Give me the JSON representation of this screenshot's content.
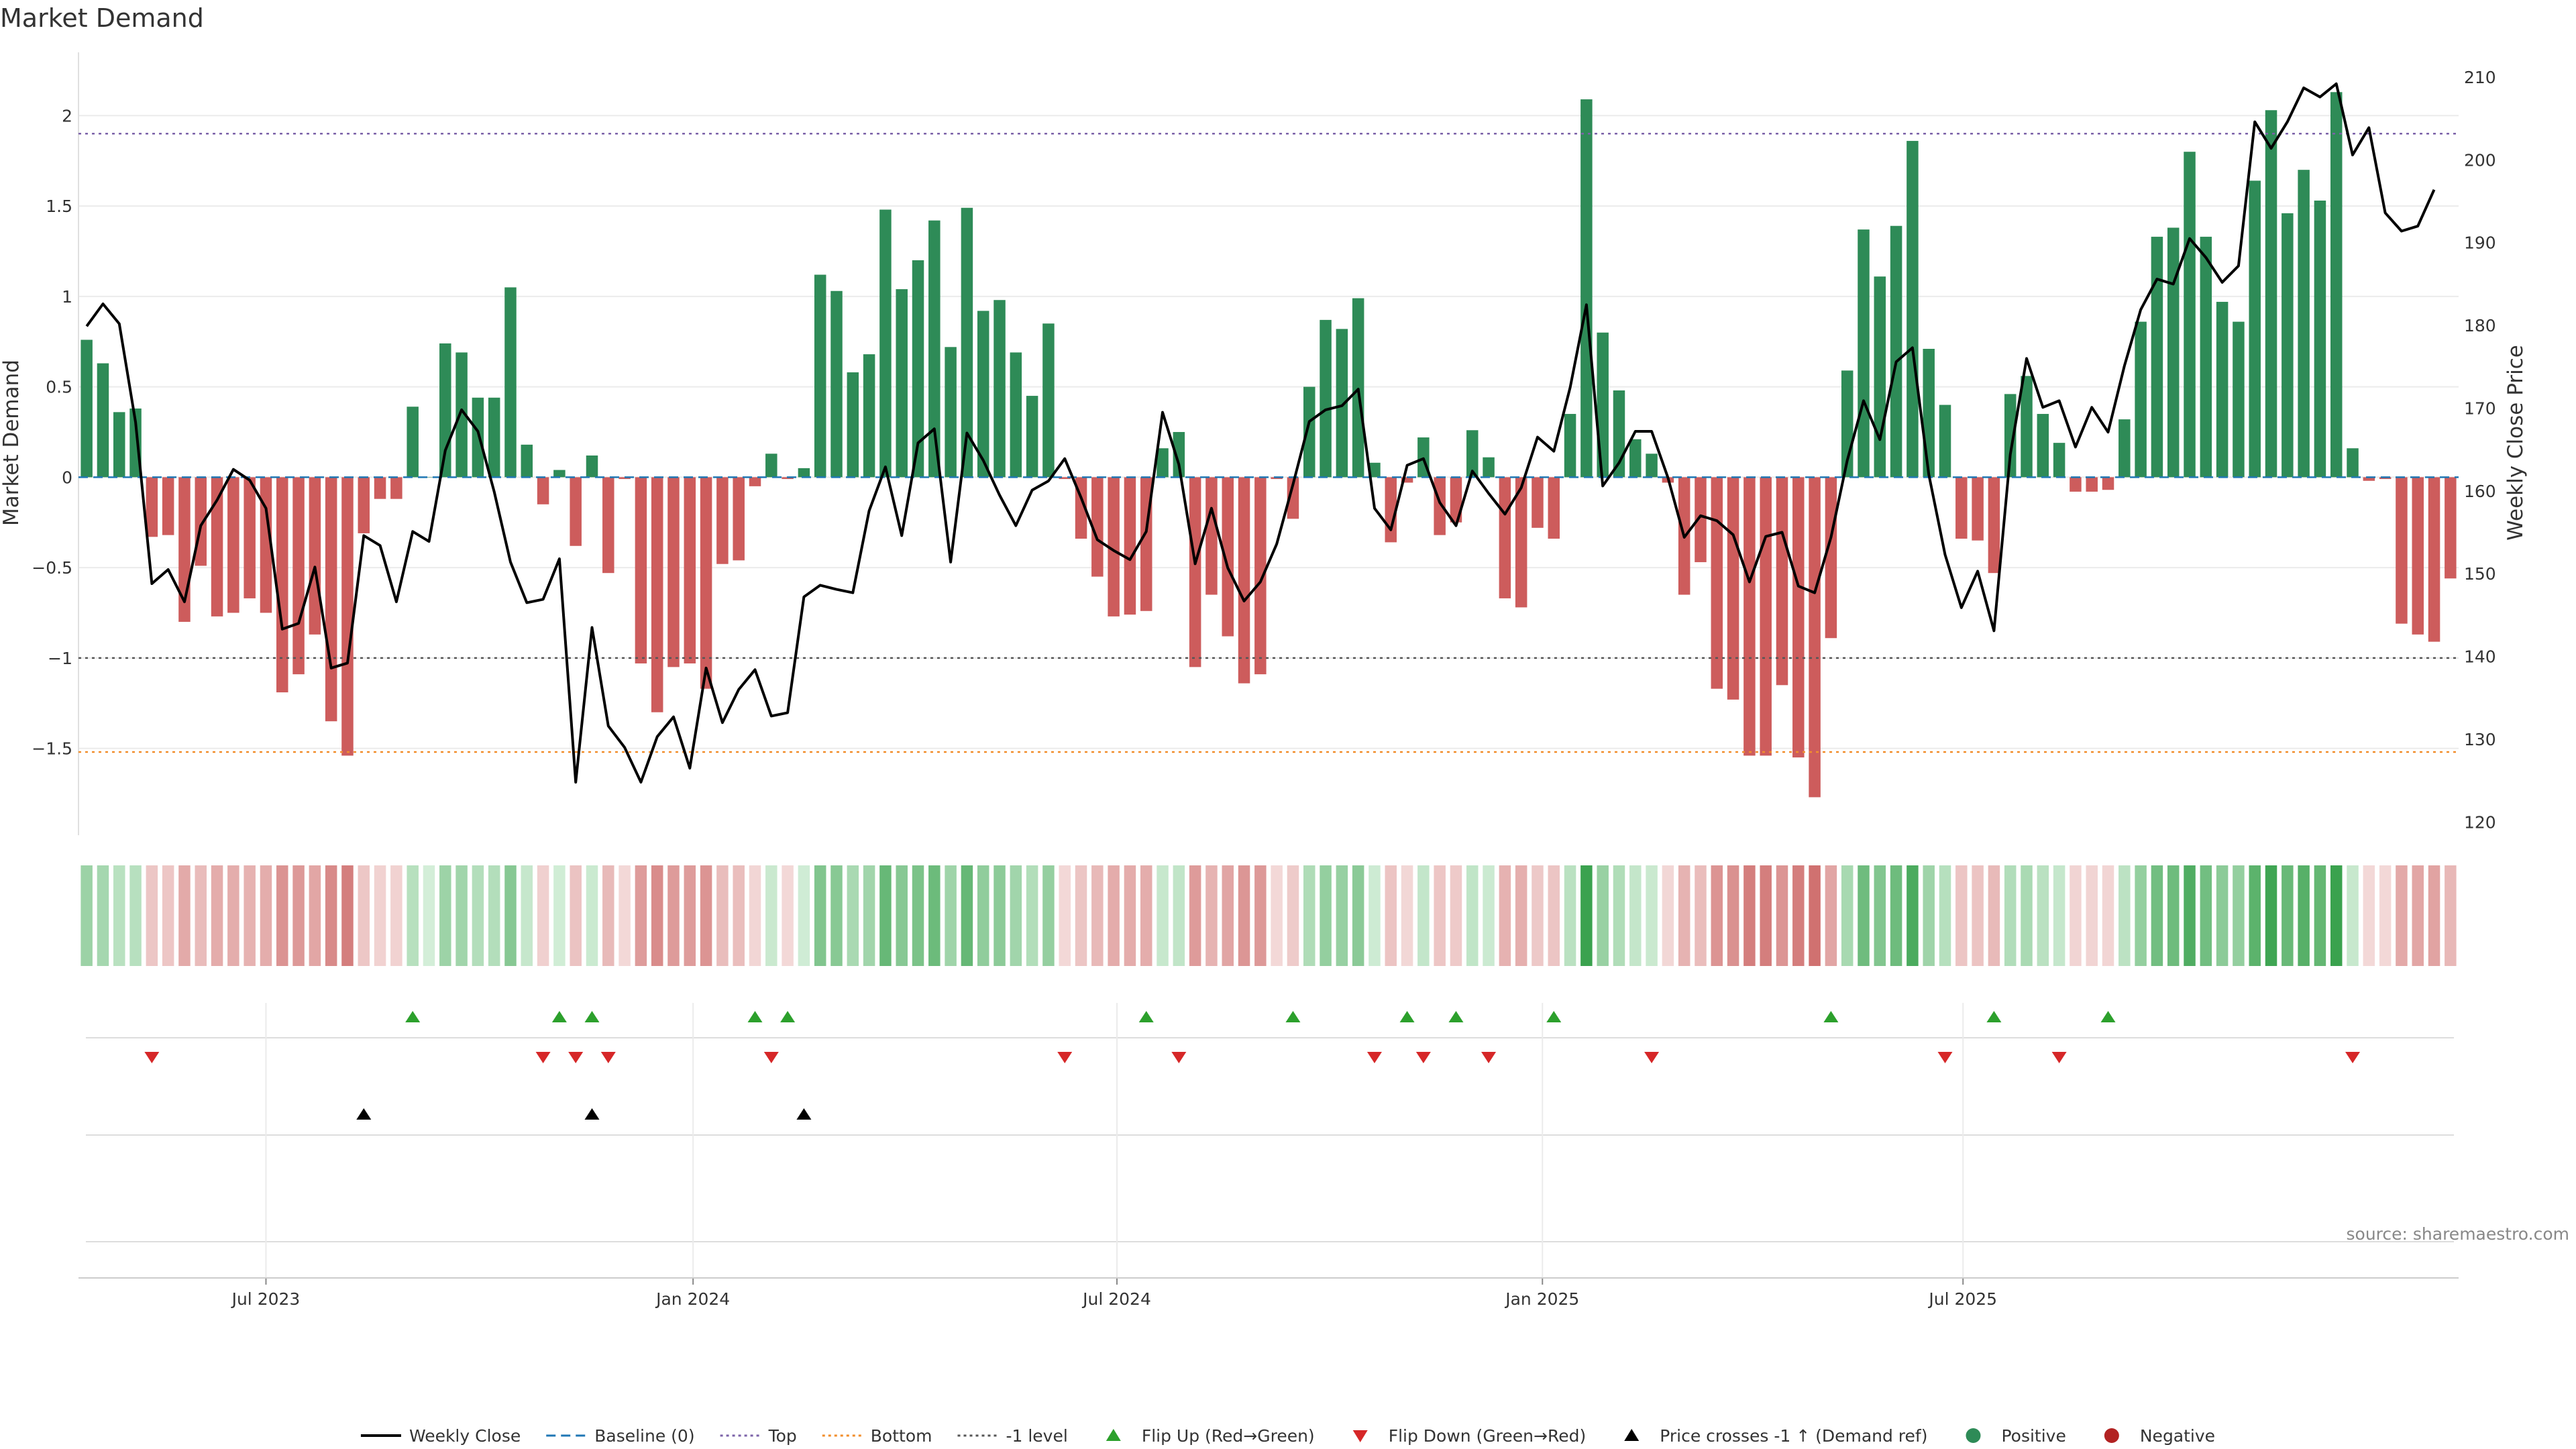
{
  "chart_data": {
    "type": "bar",
    "title": "Market Demand",
    "ylabel": "Market Demand",
    "y2label": "Weekly Close Price",
    "ylim": [
      -1.98,
      2.35
    ],
    "y2lim": [
      118.4,
      213.0
    ],
    "yticks": [
      2,
      1.5,
      1,
      0.5,
      0,
      -0.5,
      -1,
      -1.5
    ],
    "y2ticks": [
      210,
      200,
      190,
      180,
      170,
      160,
      150,
      140,
      130,
      120
    ],
    "x_labels": [
      "Jul 2023",
      "Jan 2024",
      "Jul 2024",
      "Jan 2025",
      "Jul 2025"
    ],
    "x_label_week": [
      11.0,
      37.2,
      63.2,
      89.3,
      115.1
    ],
    "levels": {
      "top": 1.9,
      "minus1": -1.0,
      "bottom": -1.52,
      "baseline": 0
    },
    "demand": [
      0.76,
      0.63,
      0.36,
      0.38,
      -0.33,
      -0.32,
      -0.8,
      -0.49,
      -0.77,
      -0.75,
      -0.67,
      -0.75,
      -1.19,
      -1.09,
      -0.87,
      -1.35,
      -1.54,
      -0.31,
      -0.12,
      -0.12,
      0.39,
      0.0,
      0.74,
      0.69,
      0.44,
      0.44,
      1.05,
      0.18,
      -0.15,
      0.04,
      -0.38,
      0.12,
      -0.53,
      -0.01,
      -1.03,
      -1.3,
      -1.05,
      -1.03,
      -1.17,
      -0.48,
      -0.46,
      -0.05,
      0.13,
      -0.01,
      0.05,
      1.12,
      1.03,
      0.58,
      0.68,
      1.48,
      1.04,
      1.2,
      1.42,
      0.72,
      1.49,
      0.92,
      0.98,
      0.69,
      0.45,
      0.85,
      -0.01,
      -0.34,
      -0.55,
      -0.77,
      -0.76,
      -0.74,
      0.16,
      0.25,
      -1.05,
      -0.65,
      -0.88,
      -1.14,
      -1.09,
      -0.01,
      -0.23,
      0.5,
      0.87,
      0.82,
      0.99,
      0.08,
      -0.36,
      -0.03,
      0.22,
      -0.32,
      -0.25,
      0.26,
      0.11,
      -0.67,
      -0.72,
      -0.28,
      -0.34,
      0.35,
      2.09,
      0.8,
      0.48,
      0.21,
      0.13,
      -0.03,
      -0.65,
      -0.47,
      -1.17,
      -1.23,
      -1.54,
      -1.54,
      -1.15,
      -1.55,
      -1.77,
      -0.89,
      0.59,
      1.37,
      1.11,
      1.39,
      1.86,
      0.71,
      0.4,
      -0.34,
      -0.35,
      -0.53,
      0.46,
      0.56,
      0.35,
      0.19,
      -0.08,
      -0.08,
      -0.07,
      0.32,
      0.86,
      1.33,
      1.38,
      1.8,
      1.33,
      0.97,
      0.86,
      1.64,
      2.03,
      1.46,
      1.7,
      1.53,
      2.13,
      0.16,
      -0.02,
      -0.01,
      -0.81,
      -0.87,
      -0.91,
      -0.56
    ],
    "close": [
      179.9,
      182.6,
      180.2,
      168.3,
      148.8,
      150.5,
      146.6,
      155.8,
      158.9,
      162.6,
      161.3,
      157.9,
      143.3,
      144.0,
      150.8,
      138.6,
      139.2,
      154.6,
      153.4,
      146.6,
      155.1,
      153.9,
      164.9,
      169.8,
      167.2,
      159.9,
      151.4,
      146.5,
      146.9,
      151.8,
      124.8,
      143.5,
      131.6,
      129.0,
      124.8,
      130.3,
      132.7,
      126.5,
      138.6,
      132.0,
      136.0,
      138.4,
      132.8,
      133.2,
      147.2,
      148.6,
      148.1,
      147.7,
      157.6,
      162.9,
      154.6,
      165.8,
      167.5,
      151.4,
      167.0,
      163.7,
      159.5,
      155.8,
      160.1,
      161.2,
      163.9,
      159.2,
      154.1,
      152.8,
      151.7,
      155.1,
      169.5,
      163.2,
      151.2,
      157.9,
      150.7,
      146.7,
      149.0,
      153.6,
      160.8,
      168.4,
      169.8,
      170.3,
      172.3,
      157.9,
      155.3,
      163.1,
      163.9,
      158.6,
      155.8,
      162.4,
      159.7,
      157.2,
      160.4,
      166.5,
      164.8,
      172.5,
      182.5,
      160.6,
      163.4,
      167.2,
      167.2,
      161.6,
      154.4,
      157.0,
      156.4,
      154.7,
      149.0,
      154.5,
      155.0,
      148.5,
      147.7,
      154.4,
      163.7,
      170.9,
      166.2,
      175.6,
      177.3,
      162.0,
      152.3,
      145.9,
      150.3,
      143.1,
      164.4,
      176.0,
      170.1,
      170.9,
      165.3,
      170.1,
      167.1,
      175.1,
      181.9,
      185.6,
      185.0,
      190.5,
      188.2,
      185.2,
      187.2,
      204.6,
      201.4,
      204.6,
      208.7,
      207.6,
      209.2,
      200.6,
      203.9,
      193.6,
      191.4,
      192.0,
      196.4
    ],
    "flip_up_weeks": [
      20,
      29,
      31,
      41,
      43,
      65,
      74,
      81,
      84,
      90,
      107,
      117,
      124
    ],
    "flip_down_weeks": [
      4,
      28,
      30,
      32,
      42,
      60,
      67,
      79,
      82,
      86,
      96,
      114,
      121,
      139
    ],
    "cross_weeks": [
      17,
      31,
      44
    ],
    "legend": [
      {
        "label": "Weekly Close",
        "kind": "line",
        "color": "#000000"
      },
      {
        "label": "Baseline (0)",
        "kind": "dash",
        "color": "#1f77b4"
      },
      {
        "label": "Top",
        "kind": "dot",
        "color": "#7b62a8"
      },
      {
        "label": "Bottom",
        "kind": "dot",
        "color": "#f28e2b"
      },
      {
        "label": "-1 level",
        "kind": "dot",
        "color": "#555555"
      },
      {
        "label": "Flip Up (Red→Green)",
        "kind": "tri-up",
        "color": "#2ca02c"
      },
      {
        "label": "Flip Down (Green→Red)",
        "kind": "tri-down",
        "color": "#d62728"
      },
      {
        "label": "Price crosses -1 ↑ (Demand ref)",
        "kind": "tri-up",
        "color": "#000000"
      },
      {
        "label": "Positive",
        "kind": "circle",
        "color": "#2e8b57"
      },
      {
        "label": "Negative",
        "kind": "circle",
        "color": "#b22222"
      }
    ],
    "source": "source: sharemaestro.com"
  },
  "colors": {
    "positive_bar": "#2e8b57",
    "negative_bar": "#cd5c5c",
    "price_line": "#000000",
    "flip_up": "#2ca02c",
    "flip_down": "#d62728",
    "cross": "#000000",
    "grid": "#ebebeb"
  }
}
